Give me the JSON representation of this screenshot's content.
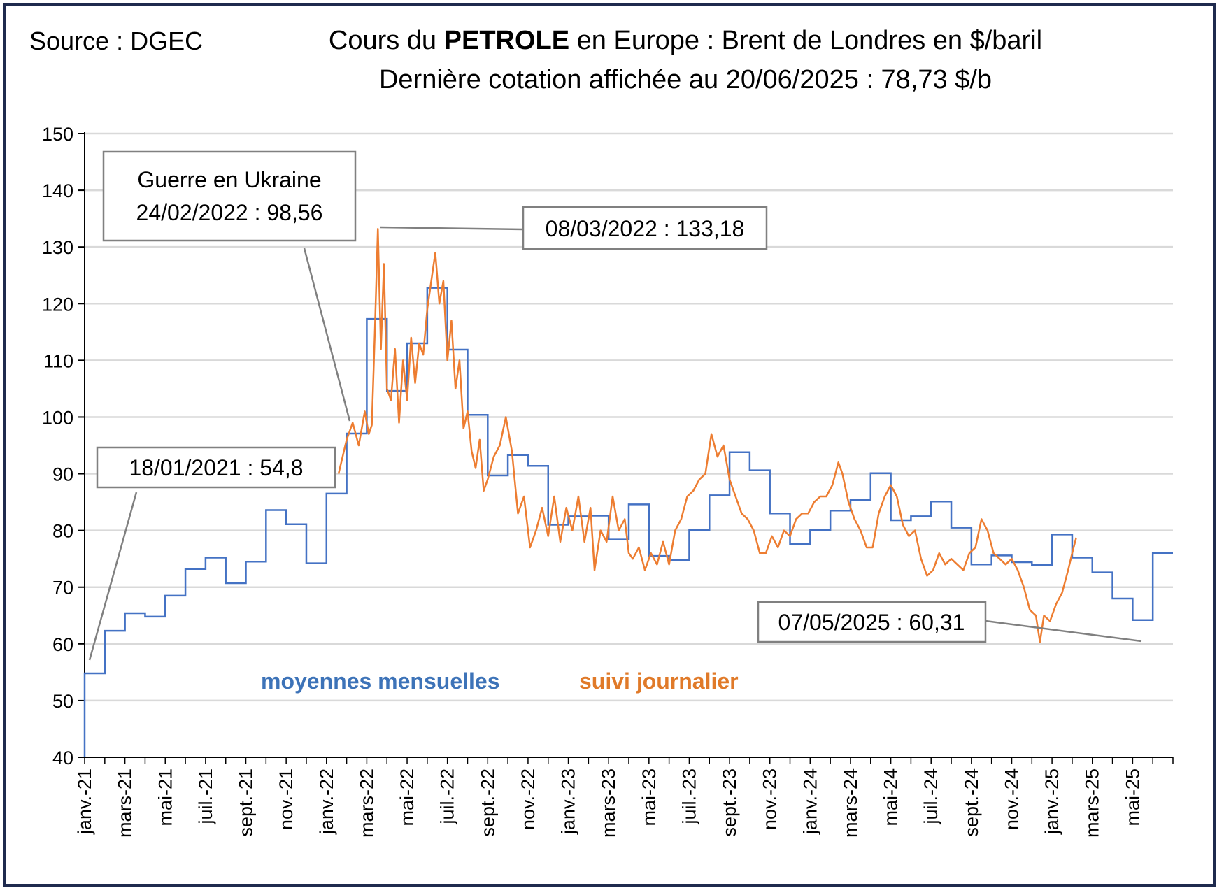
{
  "source": "Source : DGEC",
  "title": {
    "line1_a": "Cours du ",
    "line1_b": "PETROLE",
    "line1_c": " en Europe : Brent de Londres en $/baril",
    "line2": "Dernière cotation affichée au 20/06/2025 : 78,73 $/b"
  },
  "colors": {
    "monthly": "#4472c4",
    "daily": "#ed7d31",
    "grid": "#d9d9d9",
    "frame": "#1f2a4e"
  },
  "chart_data": {
    "type": "line",
    "ylim": [
      40,
      150
    ],
    "yticks": [
      40,
      50,
      60,
      70,
      80,
      90,
      100,
      110,
      120,
      130,
      140,
      150
    ],
    "xlabels": [
      "janv.-21",
      "mars-21",
      "mai-21",
      "juil.-21",
      "sept.-21",
      "nov.-21",
      "janv.-22",
      "mars-22",
      "mai-22",
      "juil.-22",
      "sept.-22",
      "nov.-22",
      "janv.-23",
      "mars-23",
      "mai-23",
      "juil.-23",
      "sept.-23",
      "nov.-23",
      "janv.-24",
      "mars-24",
      "mai-24",
      "juil.-24",
      "sept.-24",
      "nov.-24",
      "janv.-25",
      "mars-25",
      "mai-25"
    ],
    "grid": true,
    "series": [
      {
        "name": "moyennes mensuelles",
        "step": true,
        "values": [
          54.8,
          62.3,
          65.4,
          64.8,
          68.5,
          73.2,
          75.2,
          70.7,
          74.5,
          83.6,
          81.1,
          74.2,
          86.5,
          97.1,
          117.3,
          104.6,
          113.0,
          122.8,
          111.9,
          100.4,
          89.7,
          93.3,
          91.4,
          81.0,
          82.5,
          82.6,
          78.4,
          84.6,
          75.5,
          74.8,
          80.1,
          86.2,
          93.8,
          90.6,
          83.0,
          77.6,
          80.1,
          83.5,
          85.4,
          90.1,
          81.8,
          82.5,
          85.1,
          80.5,
          74.0,
          75.6,
          74.4,
          73.9,
          79.3,
          75.2,
          72.6,
          68.0,
          64.2,
          76.0
        ]
      },
      {
        "name": "suivi journalier",
        "points": [
          [
            12.6,
            90
          ],
          [
            13.0,
            96
          ],
          [
            13.3,
            99
          ],
          [
            13.6,
            95
          ],
          [
            13.9,
            101
          ],
          [
            14.1,
            97
          ],
          [
            14.25,
            98.6
          ],
          [
            14.4,
            115
          ],
          [
            14.55,
            133.2
          ],
          [
            14.7,
            112
          ],
          [
            14.85,
            127
          ],
          [
            15.0,
            105
          ],
          [
            15.2,
            103
          ],
          [
            15.4,
            112
          ],
          [
            15.6,
            99
          ],
          [
            15.8,
            110
          ],
          [
            16.0,
            103
          ],
          [
            16.2,
            114
          ],
          [
            16.4,
            106
          ],
          [
            16.6,
            113
          ],
          [
            16.8,
            111
          ],
          [
            17.0,
            119
          ],
          [
            17.2,
            124
          ],
          [
            17.4,
            129
          ],
          [
            17.6,
            120
          ],
          [
            17.8,
            124
          ],
          [
            18.0,
            110
          ],
          [
            18.2,
            117
          ],
          [
            18.4,
            105
          ],
          [
            18.6,
            110
          ],
          [
            18.8,
            98
          ],
          [
            19.0,
            101
          ],
          [
            19.2,
            94
          ],
          [
            19.4,
            91
          ],
          [
            19.6,
            96
          ],
          [
            19.8,
            87
          ],
          [
            20.0,
            89
          ],
          [
            20.3,
            93
          ],
          [
            20.6,
            95
          ],
          [
            20.9,
            100
          ],
          [
            21.2,
            94
          ],
          [
            21.5,
            83
          ],
          [
            21.8,
            86
          ],
          [
            22.1,
            77
          ],
          [
            22.4,
            80
          ],
          [
            22.7,
            84
          ],
          [
            23.0,
            79
          ],
          [
            23.3,
            86
          ],
          [
            23.6,
            78
          ],
          [
            23.9,
            84
          ],
          [
            24.2,
            80
          ],
          [
            24.5,
            86
          ],
          [
            24.8,
            78
          ],
          [
            25.1,
            84
          ],
          [
            25.3,
            73
          ],
          [
            25.6,
            80
          ],
          [
            25.9,
            78
          ],
          [
            26.2,
            86
          ],
          [
            26.5,
            80
          ],
          [
            26.8,
            82
          ],
          [
            27.0,
            76
          ],
          [
            27.2,
            75
          ],
          [
            27.5,
            77
          ],
          [
            27.8,
            73
          ],
          [
            28.1,
            76
          ],
          [
            28.4,
            74
          ],
          [
            28.7,
            78
          ],
          [
            29.0,
            74
          ],
          [
            29.3,
            80
          ],
          [
            29.6,
            82
          ],
          [
            29.9,
            86
          ],
          [
            30.2,
            87
          ],
          [
            30.5,
            89
          ],
          [
            30.8,
            90
          ],
          [
            31.1,
            97
          ],
          [
            31.4,
            93
          ],
          [
            31.7,
            95
          ],
          [
            32.0,
            89
          ],
          [
            32.3,
            86
          ],
          [
            32.6,
            83
          ],
          [
            32.9,
            82
          ],
          [
            33.2,
            80
          ],
          [
            33.5,
            76
          ],
          [
            33.8,
            76
          ],
          [
            34.1,
            79
          ],
          [
            34.4,
            77
          ],
          [
            34.7,
            80
          ],
          [
            35.0,
            79
          ],
          [
            35.3,
            82
          ],
          [
            35.6,
            83
          ],
          [
            35.9,
            83
          ],
          [
            36.2,
            85
          ],
          [
            36.5,
            86
          ],
          [
            36.8,
            86
          ],
          [
            37.1,
            88
          ],
          [
            37.4,
            92
          ],
          [
            37.6,
            90
          ],
          [
            37.9,
            85
          ],
          [
            38.2,
            82
          ],
          [
            38.5,
            80
          ],
          [
            38.8,
            77
          ],
          [
            39.1,
            77
          ],
          [
            39.4,
            83
          ],
          [
            39.7,
            86
          ],
          [
            40.0,
            88
          ],
          [
            40.3,
            86
          ],
          [
            40.6,
            81
          ],
          [
            40.9,
            79
          ],
          [
            41.2,
            80
          ],
          [
            41.5,
            75
          ],
          [
            41.8,
            72
          ],
          [
            42.1,
            73
          ],
          [
            42.4,
            76
          ],
          [
            42.7,
            74
          ],
          [
            43.0,
            75
          ],
          [
            43.3,
            74
          ],
          [
            43.6,
            73
          ],
          [
            43.9,
            76
          ],
          [
            44.2,
            77
          ],
          [
            44.5,
            82
          ],
          [
            44.8,
            80
          ],
          [
            45.1,
            76
          ],
          [
            45.4,
            75
          ],
          [
            45.7,
            74
          ],
          [
            46.0,
            75
          ],
          [
            46.3,
            73
          ],
          [
            46.6,
            70
          ],
          [
            46.9,
            66
          ],
          [
            47.2,
            65
          ],
          [
            47.4,
            60.31
          ],
          [
            47.6,
            65
          ],
          [
            47.9,
            64
          ],
          [
            48.2,
            67
          ],
          [
            48.5,
            69
          ],
          [
            48.8,
            73
          ],
          [
            49.0,
            76
          ],
          [
            49.2,
            78.73
          ]
        ]
      }
    ]
  },
  "annotations": {
    "a1": {
      "line1": "18/01/2021 : 54,8"
    },
    "a2": {
      "line1": "Guerre en Ukraine",
      "line2": "24/02/2022 : 98,56"
    },
    "a3": {
      "line1": "08/03/2022 : 133,18"
    },
    "a4": {
      "line1": "07/05/2025 : 60,31"
    }
  },
  "legend": {
    "monthly": "moyennes mensuelles",
    "daily": "suivi journalier"
  }
}
